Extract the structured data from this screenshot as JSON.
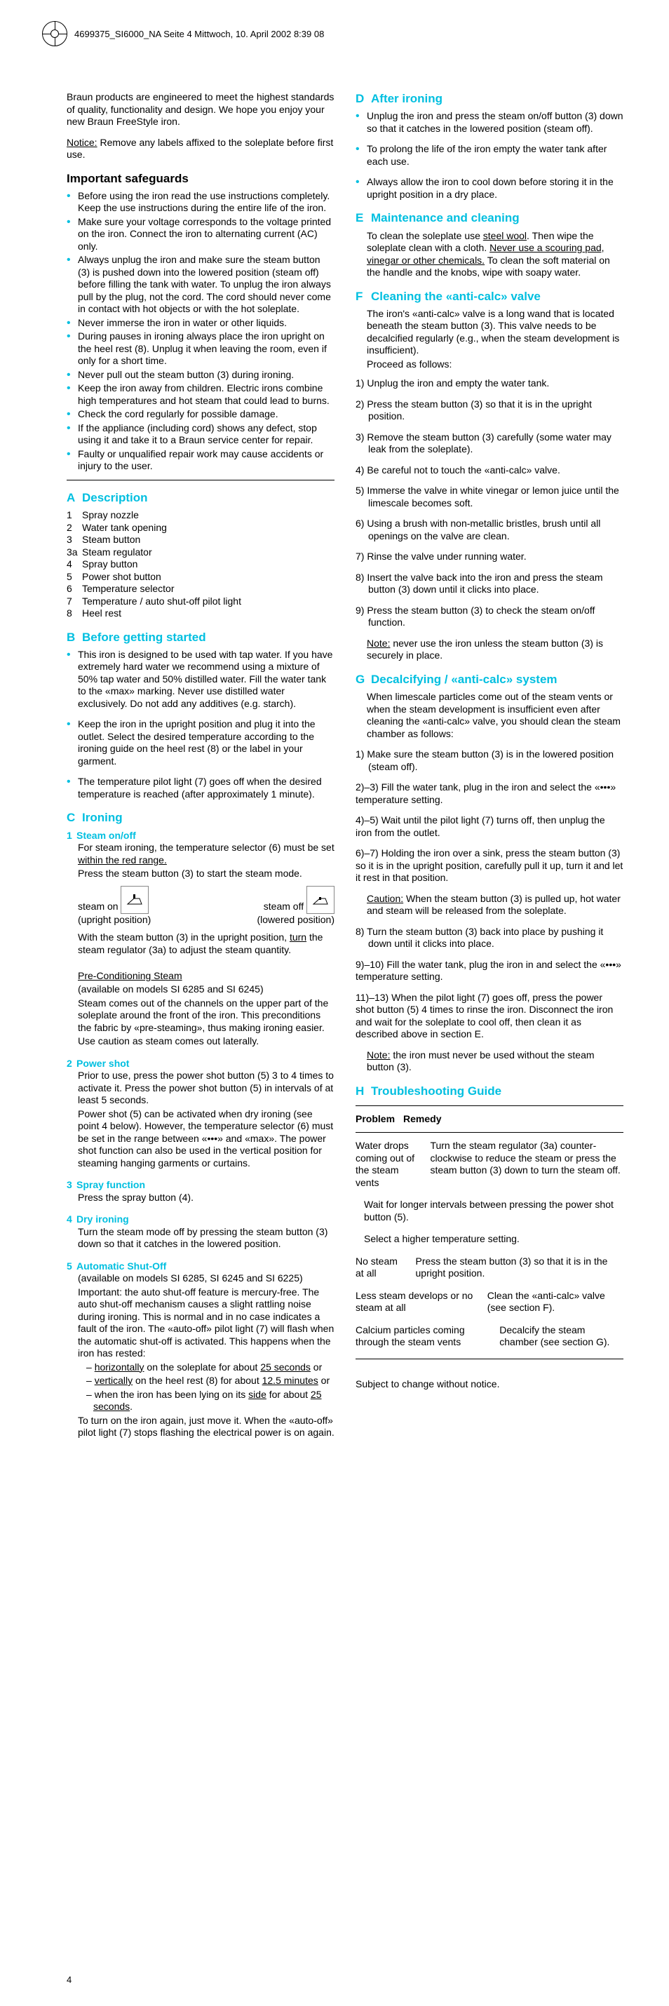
{
  "header_line": "4699375_SI6000_NA  Seite 4  Mittwoch, 10. April 2002  8:39 08",
  "page_number": "4",
  "intro": "Braun products are engineered to meet the highest standards of quality, functionality and design. We hope you enjoy your new Braun FreeStyle iron.",
  "notice_label": "Notice:",
  "notice_text": " Remove any labels affixed to the soleplate before first use.",
  "safeguards_title": "Important safeguards",
  "safeguards": [
    "Before using the iron read the use instructions completely. Keep the use instructions during the entire life of the iron.",
    "Make sure your voltage corresponds to the voltage printed on the iron. Connect the iron to alternating current (AC) only.",
    "Always unplug the iron and make sure the steam button (3) is pushed down into the lowered position (steam off) before filling the tank with water. To unplug the iron always pull by the plug, not the cord. The cord should never come in contact with hot objects or with the hot soleplate.",
    "Never immerse the iron in water or other liquids.",
    "During pauses in ironing always place the iron upright on the heel rest (8). Unplug it when leaving the room, even if only for a short time.",
    "Never pull out the steam button (3) during ironing.",
    "Keep the iron away from children. Electric irons combine high temperatures and hot steam that could lead to burns.",
    "Check the cord regularly for possible damage.",
    "If the appliance (including cord) shows any defect, stop using it and take it to a Braun service center for repair.",
    "Faulty or unqualified repair work may cause accidents or injury to the user."
  ],
  "A_title": "Description",
  "A_items": [
    {
      "n": "1",
      "t": "Spray nozzle"
    },
    {
      "n": "2",
      "t": "Water tank opening"
    },
    {
      "n": "3",
      "t": "Steam button"
    },
    {
      "n": "3a",
      "t": "Steam regulator"
    },
    {
      "n": "4",
      "t": "Spray button"
    },
    {
      "n": "5",
      "t": "Power shot button"
    },
    {
      "n": "6",
      "t": "Temperature selector"
    },
    {
      "n": "7",
      "t": "Temperature / auto shut-off pilot light"
    },
    {
      "n": "8",
      "t": "Heel rest"
    }
  ],
  "B_title": "Before getting started",
  "B_items": [
    "This iron is designed to be used with tap water. If you have extremely hard water we recommend using a mixture of 50% tap water and 50% distilled water. Fill the water tank to the «max» marking. Never use distilled water exclusively. Do not add any additives (e.g. starch).",
    "Keep the iron in the upright position and plug it into the outlet. Select the desired temperature according to the ironing guide on the heel rest (8) or the label in your garment.",
    "The temperature pilot light (7) goes off when the desired temperature is reached (after approximately 1 minute)."
  ],
  "C_title": "Ironing",
  "C1_title": "Steam on/off",
  "C1_p1a": "For steam ironing, the temperature selector (6) must be set ",
  "C1_p1b": "within the red range.",
  "C1_p2": "Press the steam button (3) to start the steam mode.",
  "steam_on": "steam on",
  "steam_off": "steam off",
  "upright": "(upright position)",
  "lowered": "(lowered position)",
  "C1_p3a": "With the steam button (3) in the upright position, ",
  "C1_p3b": "turn",
  "C1_p3c": " the steam regulator (3a) to adjust the steam quantity.",
  "C1_pre_title": "Pre-Conditioning Steam",
  "C1_pre_sub": "(available on models SI 6285 and SI 6245)",
  "C1_pre_body": "Steam comes out of the channels on the upper part of the soleplate around the front of the iron. This preconditions the fabric by «pre-steaming», thus making ironing easier.",
  "C1_pre_body2": "Use caution as steam comes out laterally.",
  "C2_title": "Power shot",
  "C2_body": "Prior to use, press the power shot button (5) 3 to 4 times to activate it. Press the power shot button (5) in intervals of at least 5 seconds.",
  "C2_body2": "Power shot (5) can be activated when dry ironing (see point 4 below). However, the temperature selector (6) must be set in the range between «•••» and «max». The power shot function can also be used in the vertical position for steaming hanging garments or curtains.",
  "C3_title": "Spray function",
  "C3_body": "Press the spray button (4).",
  "C4_title": "Dry ironing",
  "C4_body": "Turn the steam mode off by pressing the steam button (3) down so that it catches in the lowered position.",
  "C5_title": "Automatic Shut-Off",
  "C5_sub": "(available on models SI 6285, SI 6245 and SI 6225)",
  "C5_body": "Important: the auto shut-off feature is mercury-free. The auto shut-off mecha­nism causes a slight rattling noise during ironing. This is normal and in no case indicates a fault of the iron. The «auto-off» pilot light (7) will flash when the automatic shut-off is activated. This happens when the iron has rested:",
  "C5_li1a": "horizontally",
  "C5_li1b": " on the soleplate for about ",
  "C5_li1c": "25 seconds",
  "C5_li1d": " or",
  "C5_li2a": "vertically",
  "C5_li2b": " on the heel rest (8) for about ",
  "C5_li2c": "12.5 minutes",
  "C5_li2d": " or",
  "C5_li3a": "when the iron has been lying on its ",
  "C5_li3b": "side",
  "C5_li3c": " for about ",
  "C5_li3d": "25 seconds",
  "C5_li3e": ".",
  "C5_foot": "To turn on the iron again, just move it. When the «auto-off» pilot light (7) stops flashing the electrical power is on again.",
  "D_title": "After ironing",
  "D_items": [
    "Unplug the iron and press the steam on/off button (3) down so that it catches in the lowered position (steam off).",
    "To prolong the life of the iron empty the water tank after each use.",
    "Always allow the iron to cool down before storing it in the upright position in a dry place."
  ],
  "E_title": "Maintenance and cleaning",
  "E_body_a": "To clean the soleplate use ",
  "E_body_b": "steel wool",
  "E_body_c": ". Then wipe the soleplate clean with a cloth. ",
  "E_body_d": "Never use a scouring pad, vinegar or other chemicals.",
  "E_body_e": " To clean the soft material on the handle and the knobs, wipe with soapy water.",
  "F_title": "Cleaning the «anti-calc» valve",
  "F_intro": "The iron's «anti-calc» valve is a long wand that is located beneath the steam button (3). This valve needs to be decalcified regularly (e.g., when the steam develop­ment is insufficient).",
  "F_proceed": "Proceed as follows:",
  "F_steps": [
    "Unplug the iron and empty the water tank.",
    "Press the steam button (3) so that it is in the upright position.",
    "Remove the steam button (3) carefully (some water may leak from the soleplate).",
    "Be careful not to touch the «anti-calc» valve.",
    "Immerse the valve in white vinegar or lemon juice until the limescale becomes soft.",
    "Using a brush with non-metallic bristles, brush until all openings on the valve are clean.",
    "Rinse the valve under running water.",
    "Insert the valve back into the iron and press the steam button (3) down until it clicks into place.",
    "Press the steam button (3) to check the steam on/off function."
  ],
  "F_note_label": "Note:",
  "F_note": " never use the iron unless the steam button (3) is securely in place.",
  "G_title": "Decalcifying / «anti-calc» system",
  "G_intro": "When limescale particles come out of the steam vents or when the steam development is insufficient even after cleaning the «anti-calc» valve, you should clean the steam chamber as follows:",
  "G1": "Make sure the steam button (3) is in the lowered position (steam off).",
  "G23": "2)–3) Fill the water tank, plug in the iron and select the «•••» temperature setting.",
  "G45": "4)–5) Wait until the pilot light (7) turns off, then unplug the iron from the outlet.",
  "G67": "6)–7) Holding the iron over a sink, press the steam button (3) so it is in the upright position, carefully pull it up, turn it and let it rest in that position.",
  "G_caution_label": "Caution:",
  "G_caution": " When the steam button (3) is pulled up, hot water and steam will be released from the soleplate.",
  "G8": "Turn the steam button (3) back into place by pushing it down until it clicks into place.",
  "G910": "9)–10) Fill the water tank, plug the iron in and select the «•••» temperature setting.",
  "G1113": "11)–13) When the pilot light (7) goes off, press the power shot button (5) 4 times to rinse the iron. Disconnect the iron and wait for the soleplate to cool off, then clean it as described above in section E.",
  "G_note_label": "Note:",
  "G_note": " the iron must never be used without the steam button (3).",
  "H_title": "Troubleshooting Guide",
  "H_problem": "Problem",
  "H_remedy": "Remedy",
  "H_rows": [
    {
      "p": "Water drops coming out of the steam vents",
      "r": "Turn the steam regulator (3a) counter-clockwise to reduce the steam or press the steam button (3) down to turn the steam off."
    },
    {
      "p": "",
      "r": "Wait for longer intervals between pressing the power shot button (5)."
    },
    {
      "p": "",
      "r": "Select a higher temperature setting."
    },
    {
      "p": "No steam at all",
      "r": "Press the steam button (3) so that it is in the upright position."
    },
    {
      "p": "Less steam develops or no steam at all",
      "r": "Clean the «anti-calc» valve (see section F)."
    },
    {
      "p": "Calcium parti­cles coming through the steam vents",
      "r": "Decalcify the steam chamber (see section G)."
    }
  ],
  "subject_change": "Subject to change without notice."
}
